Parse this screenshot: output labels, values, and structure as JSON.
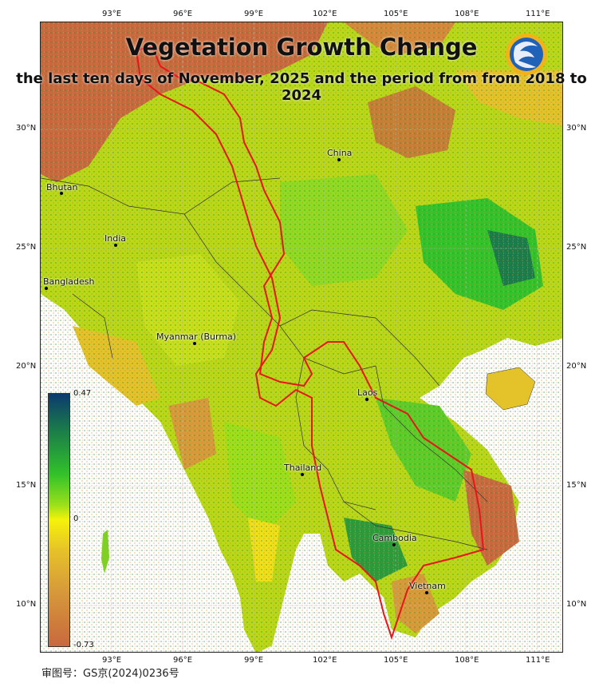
{
  "title": "Vegetation Growth Change",
  "subtitle": "the last ten days of November, 2025 and the period from from 2018 to 2024",
  "axes": {
    "lon_ticks": [
      "93°E",
      "96°E",
      "99°E",
      "102°E",
      "105°E",
      "108°E",
      "111°E"
    ],
    "lat_ticks": [
      "30°N",
      "25°N",
      "20°N",
      "15°N",
      "10°N"
    ]
  },
  "places": [
    {
      "id": "china",
      "label": "China"
    },
    {
      "id": "bhutan",
      "label": "Bhutan"
    },
    {
      "id": "india",
      "label": "India"
    },
    {
      "id": "bangladesh",
      "label": "Bangladesh"
    },
    {
      "id": "myanmar",
      "label": "Myanmar (Burma)"
    },
    {
      "id": "laos",
      "label": "Laos"
    },
    {
      "id": "thailand",
      "label": "Thailand"
    },
    {
      "id": "cambodia",
      "label": "Cambodia"
    },
    {
      "id": "vietnam",
      "label": "Vietnam"
    }
  ],
  "legend": {
    "max": "0.47",
    "mid": "0",
    "min": "-0.73"
  },
  "colors": {
    "boundary_red": "#e8151b",
    "positive_high": "#0b3a6e",
    "neutral": "#f5f20a",
    "negative": "#c8683e"
  },
  "footer": "审图号：GS京(2024)0236号",
  "icons": {
    "logo": "dragon-logo-icon"
  }
}
